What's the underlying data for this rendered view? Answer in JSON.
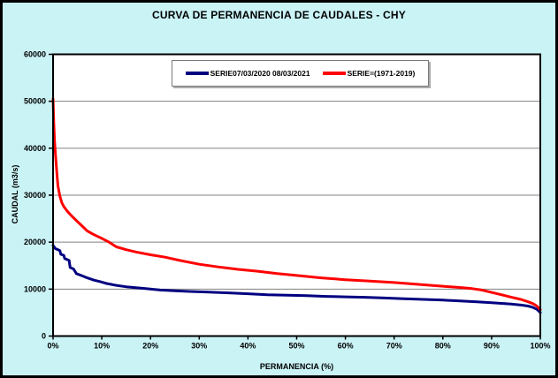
{
  "title": "CURVA DE PERMANENCIA DE CAUDALES - CHY",
  "colors": {
    "background": "#CAF3F6",
    "plot_background": "#FFFFFF",
    "grid": "#808080",
    "axis": "#000000",
    "series_blue": "#000080",
    "series_red": "#FF0000"
  },
  "chart_data": {
    "type": "line",
    "title": "CURVA DE PERMANENCIA DE CAUDALES - CHY",
    "xlabel": "PERMANENCIA (%)",
    "ylabel": "CAUDAL (m3/s)",
    "xlim": [
      0,
      100
    ],
    "ylim": [
      0,
      60000
    ],
    "x_ticks": [
      "0%",
      "10%",
      "20%",
      "30%",
      "40%",
      "50%",
      "60%",
      "70%",
      "80%",
      "90%",
      "100%"
    ],
    "y_ticks": [
      0,
      10000,
      20000,
      30000,
      40000,
      50000,
      60000
    ],
    "grid": "horizontal",
    "legend_position": "top-center",
    "series": [
      {
        "name": "SERIE07/03/2020 08/03/2021",
        "color": "#000080",
        "points": [
          [
            0,
            19300
          ],
          [
            0.5,
            18600
          ],
          [
            1,
            18400
          ],
          [
            1.4,
            18200
          ],
          [
            1.6,
            17400
          ],
          [
            2.2,
            17200
          ],
          [
            2.4,
            16500
          ],
          [
            3.3,
            16100
          ],
          [
            3.5,
            14600
          ],
          [
            4.2,
            14300
          ],
          [
            4.8,
            13300
          ],
          [
            6,
            12800
          ],
          [
            7,
            12400
          ],
          [
            8.4,
            11900
          ],
          [
            9.6,
            11600
          ],
          [
            11,
            11200
          ],
          [
            13,
            10800
          ],
          [
            15,
            10500
          ],
          [
            17,
            10300
          ],
          [
            19,
            10100
          ],
          [
            22,
            9800
          ],
          [
            25,
            9650
          ],
          [
            28,
            9500
          ],
          [
            32,
            9350
          ],
          [
            36,
            9200
          ],
          [
            40,
            9000
          ],
          [
            44,
            8800
          ],
          [
            48,
            8700
          ],
          [
            52,
            8600
          ],
          [
            56,
            8450
          ],
          [
            60,
            8350
          ],
          [
            64,
            8250
          ],
          [
            68,
            8100
          ],
          [
            72,
            7950
          ],
          [
            76,
            7800
          ],
          [
            80,
            7650
          ],
          [
            84,
            7450
          ],
          [
            87,
            7300
          ],
          [
            90,
            7100
          ],
          [
            92,
            6950
          ],
          [
            94,
            6800
          ],
          [
            96,
            6600
          ],
          [
            97.5,
            6400
          ],
          [
            98.5,
            6100
          ],
          [
            99.3,
            5700
          ],
          [
            100,
            5000
          ]
        ]
      },
      {
        "name": "SERIE=(1971-2019)",
        "color": "#FF0000",
        "points": [
          [
            0,
            50500
          ],
          [
            0.15,
            45500
          ],
          [
            0.3,
            41500
          ],
          [
            0.5,
            38500
          ],
          [
            0.8,
            34500
          ],
          [
            1,
            32000
          ],
          [
            1.4,
            29800
          ],
          [
            1.8,
            28400
          ],
          [
            2.2,
            27600
          ],
          [
            3,
            26500
          ],
          [
            4,
            25400
          ],
          [
            5,
            24400
          ],
          [
            6,
            23400
          ],
          [
            7,
            22400
          ],
          [
            8,
            21800
          ],
          [
            9,
            21300
          ],
          [
            10,
            20800
          ],
          [
            11.5,
            20000
          ],
          [
            13,
            19000
          ],
          [
            15,
            18400
          ],
          [
            17,
            17900
          ],
          [
            20,
            17300
          ],
          [
            23,
            16800
          ],
          [
            26,
            16100
          ],
          [
            30,
            15300
          ],
          [
            34,
            14700
          ],
          [
            38,
            14200
          ],
          [
            42,
            13800
          ],
          [
            46,
            13300
          ],
          [
            50,
            12900
          ],
          [
            55,
            12400
          ],
          [
            60,
            12000
          ],
          [
            65,
            11700
          ],
          [
            70,
            11400
          ],
          [
            75,
            11000
          ],
          [
            80,
            10600
          ],
          [
            84,
            10300
          ],
          [
            86,
            10100
          ],
          [
            88,
            9800
          ],
          [
            90,
            9300
          ],
          [
            92,
            8800
          ],
          [
            94,
            8300
          ],
          [
            96,
            7800
          ],
          [
            97.5,
            7300
          ],
          [
            98.5,
            6900
          ],
          [
            99.3,
            6400
          ],
          [
            100,
            5600
          ]
        ]
      }
    ]
  }
}
